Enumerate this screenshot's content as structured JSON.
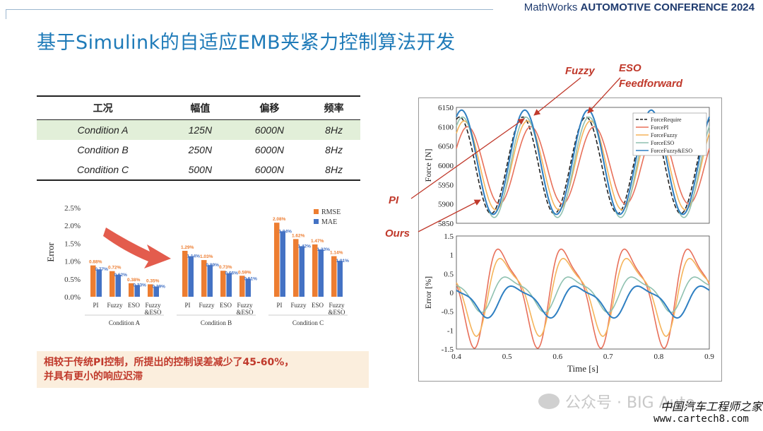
{
  "header": {
    "conference_prefix": "MathWorks",
    "conference_name": "AUTOMOTIVE CONFERENCE 2024"
  },
  "page_title": "基于Simulink的自适应EMB夹紧力控制算法开发",
  "conditions_table": {
    "headers": [
      "工况",
      "幅值",
      "偏移",
      "频率"
    ],
    "rows": [
      [
        "Condition A",
        "125N",
        "6000N",
        "8Hz"
      ],
      [
        "Condition B",
        "250N",
        "6000N",
        "8Hz"
      ],
      [
        "Condition C",
        "500N",
        "6000N",
        "8Hz"
      ]
    ],
    "highlight_color": "#e2efd9"
  },
  "note": {
    "line1": "相较于传统PI控制，所提出的控制误差减少了45-60%，",
    "line2": "并具有更小的响应迟滞"
  },
  "annotations": {
    "fuzzy": "Fuzzy",
    "eso": "ESO",
    "feedforward": "Feedforward",
    "pi": "PI",
    "ours": "Ours"
  },
  "watermark": {
    "account": "公众号 · BIG Auto",
    "site_cn": "中国汽车工程师之家",
    "site_url": "www.cartech8.com"
  },
  "colors": {
    "title": "#1e7ab8",
    "rmse": "#ed7d31",
    "mae": "#4472c4",
    "annotation": "#c0392b",
    "ForceRequire": "#222222",
    "ForcePI": "#e8705a",
    "ForceFuzzy": "#f5b45a",
    "ForceESO": "#8fc1b0",
    "ForceFuzzyESO": "#2e7fc2"
  },
  "chart_data": [
    {
      "type": "bar",
      "ylabel": "Error",
      "ylim": [
        0,
        2.5
      ],
      "yticks": [
        "0.0%",
        "0.5%",
        "1.0%",
        "1.5%",
        "2.0%",
        "2.5%"
      ],
      "legend_position": "top-right",
      "groups": [
        {
          "name": "Condition A",
          "categories": [
            "PI",
            "Fuzzy",
            "ESO",
            "Fuzzy\n&ESO"
          ],
          "RMSE": [
            0.88,
            0.72,
            0.38,
            0.35
          ],
          "MAE": [
            0.77,
            0.62,
            0.33,
            0.29
          ],
          "RMSE_labels": [
            "0.88%",
            "0.72%",
            "0.38%",
            "0.35%"
          ],
          "MAE_labels": [
            "0.77%",
            "0.62%",
            "0.33%",
            "0.29%"
          ]
        },
        {
          "name": "Condition B",
          "categories": [
            "PI",
            "Fuzzy",
            "ESO",
            "Fuzzy\n&ESO"
          ],
          "RMSE": [
            1.29,
            1.03,
            0.73,
            0.59
          ],
          "MAE": [
            1.14,
            0.89,
            0.66,
            0.51
          ],
          "RMSE_labels": [
            "1.29%",
            "1.03%",
            "0.73%",
            "0.59%"
          ],
          "MAE_labels": [
            "1.14%",
            "0.89%",
            "0.66%",
            "0.51%"
          ]
        },
        {
          "name": "Condition C",
          "categories": [
            "PI",
            "Fuzzy",
            "ESO",
            "Fuzzy\n&ESO"
          ],
          "RMSE": [
            2.08,
            1.62,
            1.47,
            1.14
          ],
          "MAE": [
            1.84,
            1.42,
            1.33,
            1.01
          ],
          "RMSE_labels": [
            "2.08%",
            "1.62%",
            "1.47%",
            "1.14%"
          ],
          "MAE_labels": [
            "1.84%",
            "1.42%",
            "1.33%",
            "1.01%"
          ]
        }
      ],
      "series": [
        {
          "name": "RMSE"
        },
        {
          "name": "MAE"
        }
      ]
    },
    {
      "type": "line",
      "panel": "force",
      "ylabel": "Force [N]",
      "xlim": [
        0.4,
        0.9
      ],
      "ylim": [
        5850,
        6150
      ],
      "yticks": [
        5850,
        5900,
        5950,
        6000,
        6050,
        6100,
        6150
      ],
      "legend_position": "top-right",
      "frequency_hz": 8,
      "series": [
        {
          "name": "ForceRequire",
          "offset": 6000,
          "amplitude": 125,
          "phase_lag_s": 0.0
        },
        {
          "name": "ForcePI",
          "offset": 6000,
          "amplitude": 100,
          "phase_lag_s": 0.016
        },
        {
          "name": "ForceFuzzy",
          "offset": 6000,
          "amplitude": 115,
          "phase_lag_s": 0.009
        },
        {
          "name": "ForceESO",
          "offset": 5995,
          "amplitude": 130,
          "phase_lag_s": 0.006
        },
        {
          "name": "ForceFuzzy&ESO",
          "offset": 6008,
          "amplitude": 135,
          "phase_lag_s": 0.004
        }
      ]
    },
    {
      "type": "line",
      "panel": "error",
      "ylabel": "Error [%]",
      "xlabel": "Time [s]",
      "xlim": [
        0.4,
        0.9
      ],
      "xticks": [
        0.4,
        0.5,
        0.6,
        0.7,
        0.8,
        0.9
      ],
      "ylim": [
        -1.5,
        1.5
      ],
      "yticks": [
        -1.5,
        -1,
        -0.5,
        0,
        0.5,
        1,
        1.5
      ],
      "frequency_hz": 8,
      "series": [
        {
          "name": "ForcePI",
          "amplitude": 1.4,
          "phase": 1.9
        },
        {
          "name": "ForceFuzzy",
          "amplitude": 1.1,
          "phase": 1.7
        },
        {
          "name": "ForceESO",
          "amplitude": 0.5,
          "phase": 1.2
        },
        {
          "name": "ForceFuzzy&ESO",
          "amplitude": 0.45,
          "phase": 0.6,
          "bias": -0.2
        }
      ]
    }
  ]
}
